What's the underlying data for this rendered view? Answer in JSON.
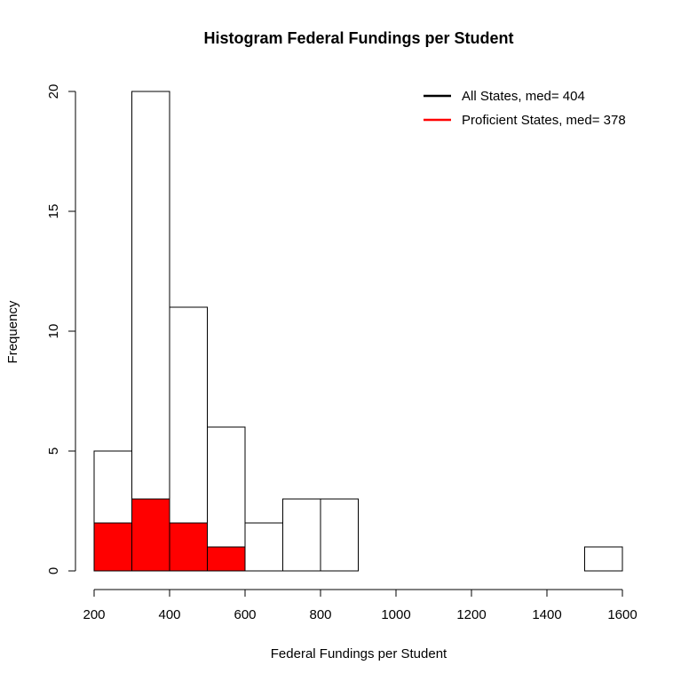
{
  "chart_data": {
    "type": "bar",
    "title": "Histogram Federal Fundings per Student",
    "xlabel": "Federal Fundings per Student",
    "ylabel": "Frequency",
    "xlim": [
      200,
      1600
    ],
    "ylim": [
      0,
      20
    ],
    "x_ticks": [
      "200",
      "400",
      "600",
      "800",
      "1000",
      "1200",
      "1400",
      "1600"
    ],
    "y_ticks": [
      "0",
      "5",
      "10",
      "15",
      "20"
    ],
    "bin_edges": [
      200,
      300,
      400,
      500,
      600,
      700,
      800,
      900,
      1000,
      1100,
      1200,
      1300,
      1400,
      1500,
      1600
    ],
    "series": [
      {
        "name": "All States, med= 404",
        "fill": "#ffffff",
        "line_color": "#000000",
        "values": [
          5,
          20,
          11,
          6,
          2,
          3,
          3,
          0,
          0,
          0,
          0,
          0,
          0,
          1
        ]
      },
      {
        "name": "Proficient States, med= 378",
        "fill": "#ff0000",
        "line_color": "#ff0000",
        "values": [
          2,
          3,
          2,
          1,
          0,
          0,
          0,
          0,
          0,
          0,
          0,
          0,
          0,
          0
        ]
      }
    ],
    "legend_position": "top-right",
    "grid": false
  }
}
